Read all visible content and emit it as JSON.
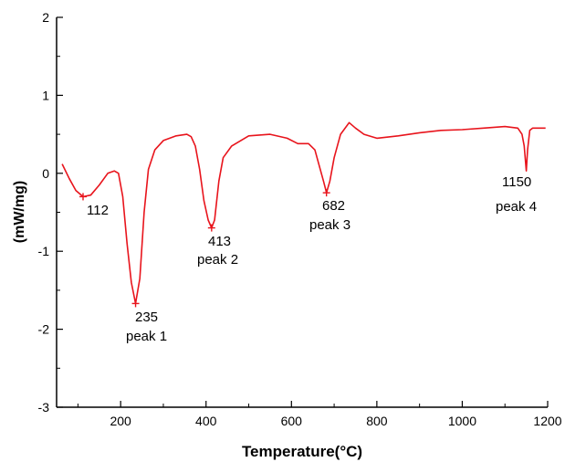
{
  "chart_data": {
    "type": "line",
    "title": "",
    "xlabel": "Temperature(°C)",
    "ylabel": "(mW/mg)",
    "xlim": [
      50,
      1200
    ],
    "ylim": [
      -3,
      2
    ],
    "x_ticks": [
      200,
      400,
      600,
      800,
      1000,
      1200
    ],
    "x_tick_labels": [
      "200",
      "400",
      "600",
      "800",
      "1000",
      "1200"
    ],
    "y_ticks": [
      -3,
      -2,
      -1,
      0,
      1,
      2
    ],
    "y_tick_labels": [
      "-3",
      "-2",
      "-1",
      "0",
      "1",
      "2"
    ],
    "grid": false,
    "legend": "none",
    "series": [
      {
        "color": "#e8141c",
        "x": [
          63,
          80,
          95,
          112,
          130,
          150,
          170,
          185,
          195,
          205,
          215,
          225,
          235,
          245,
          255,
          265,
          280,
          300,
          330,
          355,
          365,
          375,
          385,
          395,
          405,
          413,
          420,
          430,
          440,
          460,
          500,
          550,
          590,
          615,
          640,
          655,
          665,
          675,
          682,
          690,
          700,
          715,
          735,
          750,
          770,
          800,
          850,
          900,
          950,
          1000,
          1050,
          1100,
          1130,
          1140,
          1145,
          1150,
          1153,
          1158,
          1165,
          1180,
          1195
        ],
        "y": [
          0.12,
          -0.07,
          -0.22,
          -0.3,
          -0.28,
          -0.15,
          0.0,
          0.03,
          0.0,
          -0.3,
          -0.9,
          -1.4,
          -1.67,
          -1.35,
          -0.5,
          0.05,
          0.3,
          0.42,
          0.48,
          0.5,
          0.47,
          0.35,
          0.05,
          -0.35,
          -0.6,
          -0.7,
          -0.6,
          -0.1,
          0.2,
          0.35,
          0.48,
          0.5,
          0.45,
          0.38,
          0.38,
          0.3,
          0.1,
          -0.1,
          -0.25,
          -0.1,
          0.2,
          0.5,
          0.65,
          0.58,
          0.5,
          0.45,
          0.48,
          0.52,
          0.55,
          0.56,
          0.58,
          0.6,
          0.58,
          0.5,
          0.35,
          0.03,
          0.3,
          0.55,
          0.58,
          0.58,
          0.58
        ]
      }
    ],
    "markers": [
      {
        "x": 112,
        "y": -0.3
      },
      {
        "x": 235,
        "y": -1.67
      },
      {
        "x": 413,
        "y": -0.7
      },
      {
        "x": 682,
        "y": -0.25
      }
    ],
    "annotations": [
      {
        "value": "112"
      },
      {
        "value": "235",
        "label": "peak 1"
      },
      {
        "value": "413",
        "label": "peak 2"
      },
      {
        "value": "682",
        "label": "peak 3"
      },
      {
        "value": "1150",
        "label": "peak 4"
      }
    ]
  }
}
